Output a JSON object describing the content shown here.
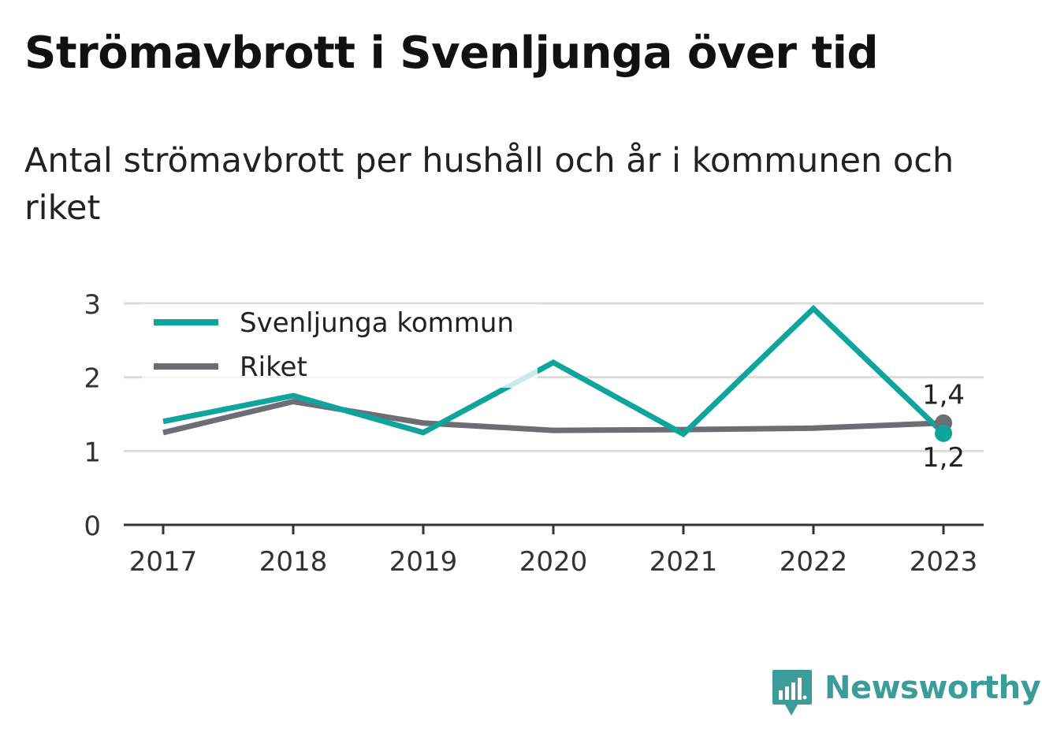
{
  "header": {
    "title": "Strömavbrott i Svenljunga över tid",
    "subtitle": "Antal strömavbrott per hushåll och år i kommunen och riket"
  },
  "brand": {
    "name": "Newsworthy",
    "icon": "newsworthy-logo-icon",
    "color": "#3b9c9a"
  },
  "chart_data": {
    "type": "line",
    "title": "Strömavbrott i Svenljunga över tid",
    "subtitle": "Antal strömavbrott per hushåll och år i kommunen och riket",
    "xlabel": "",
    "ylabel": "",
    "categories": [
      "2017",
      "2018",
      "2019",
      "2020",
      "2021",
      "2022",
      "2023"
    ],
    "ylim": [
      0,
      3
    ],
    "yticks": [
      0,
      1,
      2,
      3
    ],
    "ytick_labels": [
      "0",
      "1",
      "2",
      "3"
    ],
    "grid": true,
    "legend_position": "top-left",
    "series": [
      {
        "name": "Svenljunga kommun",
        "color": "#10a59b",
        "values": [
          1.4,
          1.75,
          1.25,
          2.2,
          1.23,
          2.93,
          1.24
        ]
      },
      {
        "name": "Riket",
        "color": "#6e6d74",
        "values": [
          1.25,
          1.67,
          1.38,
          1.28,
          1.29,
          1.31,
          1.38
        ]
      }
    ],
    "annotations": [
      {
        "series": "Riket",
        "category": "2023",
        "label": "1,4",
        "position": "above"
      },
      {
        "series": "Svenljunga kommun",
        "category": "2023",
        "label": "1,2",
        "position": "below"
      }
    ]
  }
}
